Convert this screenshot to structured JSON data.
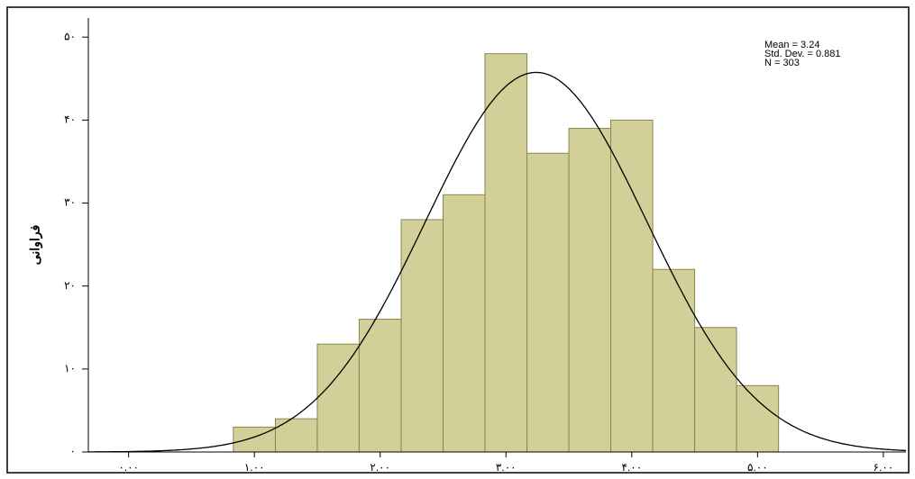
{
  "chart_data": {
    "type": "histogram",
    "y_label": "فراوانی",
    "bins": [
      0.833,
      1.167,
      1.5,
      1.833,
      2.167,
      2.5,
      2.833,
      3.167,
      3.5,
      3.833,
      4.167,
      4.5,
      4.833,
      5.167
    ],
    "values": [
      3,
      4,
      13,
      16,
      28,
      31,
      48,
      36,
      39,
      40,
      22,
      15,
      8
    ],
    "color": "#d2cf98",
    "edge_color": "#8a8550",
    "xlim": [
      -0.32,
      6.18
    ],
    "ylim": [
      0,
      52.3
    ],
    "xticks": [
      {
        "value": 0,
        "label": "۰.۰۰"
      },
      {
        "value": 1,
        "label": "۱.۰۰"
      },
      {
        "value": 2,
        "label": "۲.۰۰"
      },
      {
        "value": 3,
        "label": "۳.۰۰"
      },
      {
        "value": 4,
        "label": "۴.۰۰"
      },
      {
        "value": 5,
        "label": "۵.۰۰"
      },
      {
        "value": 6,
        "label": "۶.۰۰"
      }
    ],
    "yticks": [
      {
        "value": 0,
        "label": "۰"
      },
      {
        "value": 10,
        "label": "۱۰"
      },
      {
        "value": 20,
        "label": "۲۰"
      },
      {
        "value": 30,
        "label": "۳۰"
      },
      {
        "value": 40,
        "label": "۴۰"
      },
      {
        "value": 50,
        "label": "۵۰"
      }
    ],
    "stats": [
      {
        "value": 3.24,
        "label": "Mean = 3.24"
      },
      {
        "value": 0.881,
        "label": "Std. Dev. = 0.881"
      },
      {
        "value": 303,
        "label": "N = 303"
      }
    ]
  }
}
